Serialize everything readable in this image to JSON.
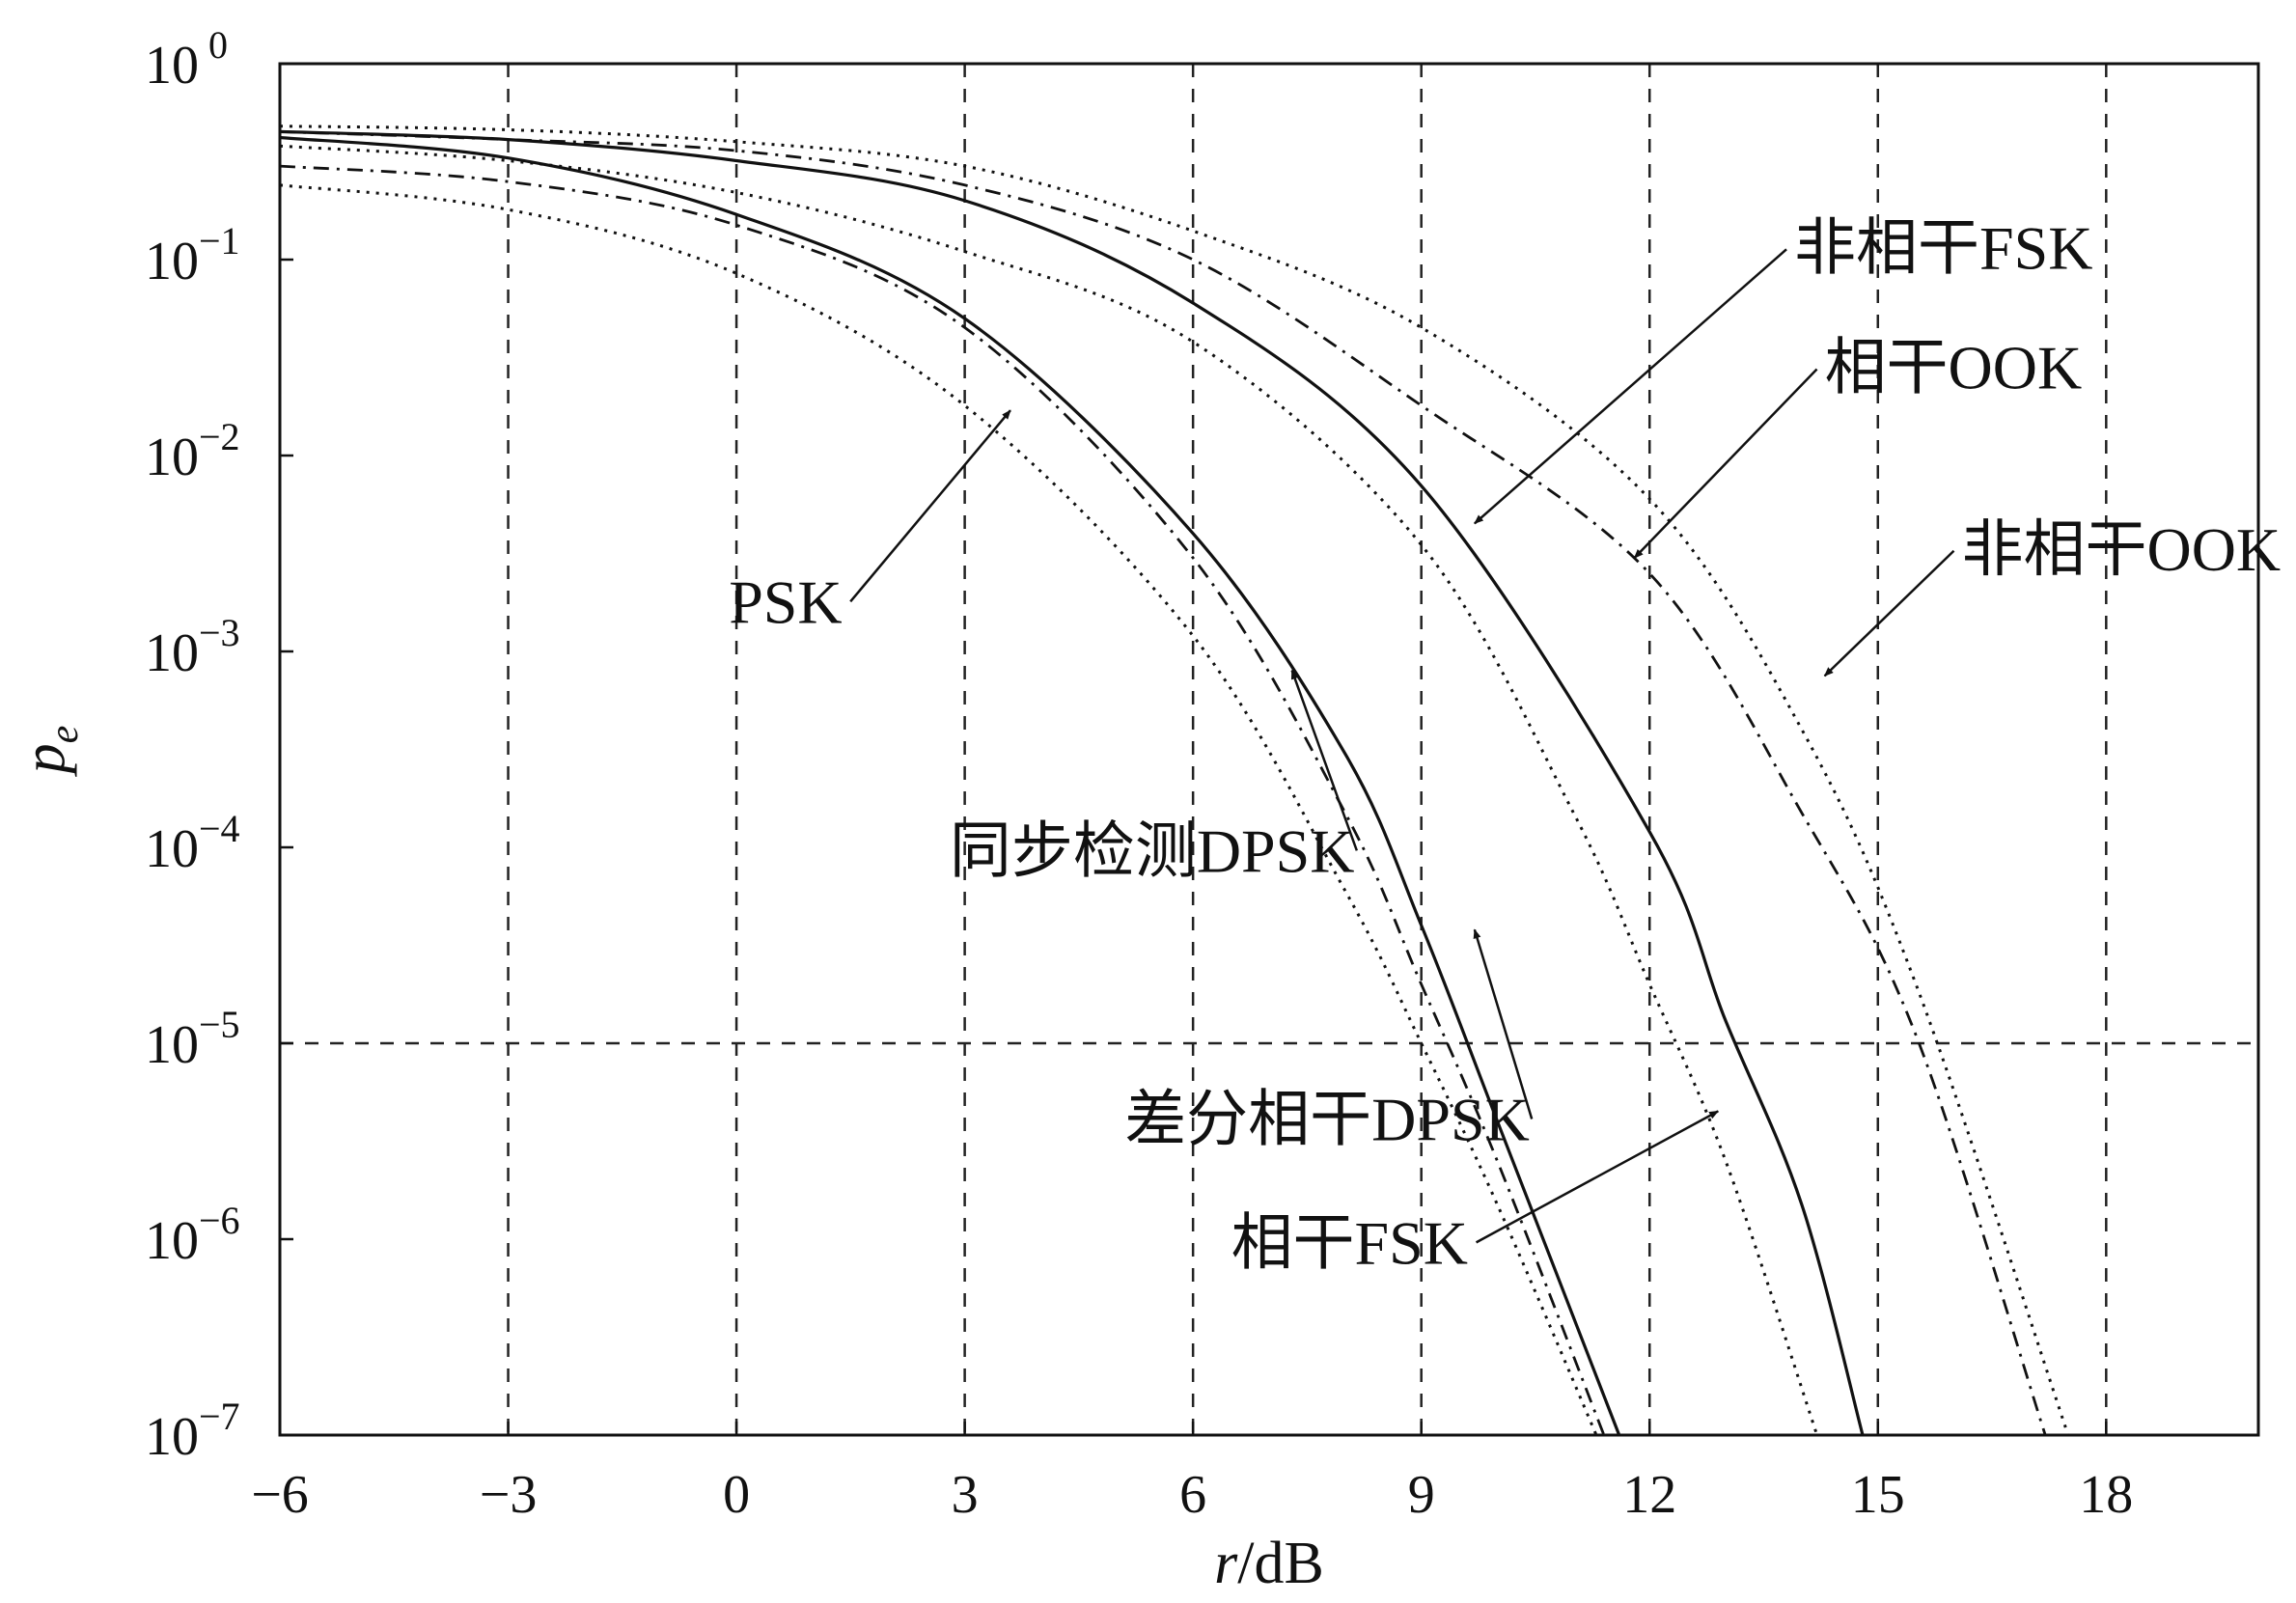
{
  "chart_data": {
    "type": "line",
    "xlabel": "r/dB",
    "ylabel": "p",
    "ylabel_sub": "e",
    "xlim": [
      -6,
      20
    ],
    "ylim": [
      1e-07,
      1
    ],
    "y_scale": "log",
    "grid": "dashed",
    "x_ticks": [
      -6,
      -3,
      0,
      3,
      6,
      9,
      12,
      15,
      18
    ],
    "x_tick_labels": [
      "−6",
      "−3",
      "0",
      "3",
      "6",
      "9",
      "12",
      "15",
      "18"
    ],
    "y_ticks": [
      {
        "value": 1,
        "base": "10",
        "exp": " 0"
      },
      {
        "value": 0.1,
        "base": "10",
        "exp": "−1"
      },
      {
        "value": 0.01,
        "base": "10",
        "exp": "−2"
      },
      {
        "value": 0.001,
        "base": "10",
        "exp": "−3"
      },
      {
        "value": 0.0001,
        "base": "10",
        "exp": "−4"
      },
      {
        "value": 1e-05,
        "base": "10",
        "exp": "−5"
      },
      {
        "value": 1e-06,
        "base": "10",
        "exp": "−6"
      },
      {
        "value": 1e-07,
        "base": "10",
        "exp": "−7"
      }
    ],
    "series": [
      {
        "name": "PSK",
        "style": "dotted",
        "x": [
          -6,
          -3,
          0,
          3,
          6,
          8,
          9,
          10,
          11.3
        ],
        "y": [
          0.24,
          0.18,
          0.085,
          0.018,
          0.0012,
          6e-05,
          1e-05,
          1.5e-06,
          1e-07
        ]
      },
      {
        "name": "同步检测DPSK",
        "style": "dashdot",
        "x": [
          -6,
          -3,
          0,
          3,
          6,
          8,
          9,
          10,
          11.4
        ],
        "y": [
          0.3,
          0.25,
          0.15,
          0.045,
          0.003,
          0.00015,
          2e-05,
          2.5e-06,
          1e-07
        ]
      },
      {
        "name": "差分相干DPSK",
        "style": "solid",
        "x": [
          -6,
          -3,
          0,
          3,
          6,
          8,
          9,
          10,
          11.6
        ],
        "y": [
          0.42,
          0.33,
          0.17,
          0.05,
          0.004,
          0.0003,
          4e-05,
          4e-06,
          1e-07
        ]
      },
      {
        "name": "相干FSK",
        "style": "dotted",
        "x": [
          -6,
          -3,
          0,
          3,
          6,
          9,
          11,
          12,
          13,
          14.2
        ],
        "y": [
          0.38,
          0.32,
          0.22,
          0.11,
          0.038,
          0.0035,
          0.00015,
          2e-05,
          2.5e-06,
          1e-07
        ]
      },
      {
        "name": "非相干FSK",
        "style": "solid",
        "x": [
          -6,
          -3,
          0,
          3,
          6,
          9,
          12,
          13,
          14,
          14.8
        ],
        "y": [
          0.45,
          0.41,
          0.32,
          0.2,
          0.06,
          0.007,
          0.00012,
          1.3e-05,
          1.5e-06,
          1e-07
        ]
      },
      {
        "name": "相干OOK",
        "style": "dashdot",
        "x": [
          -6,
          -3,
          0,
          3,
          6,
          9,
          12,
          14,
          15.5,
          17.2
        ],
        "y": [
          0.45,
          0.41,
          0.36,
          0.24,
          0.1,
          0.018,
          0.0025,
          0.00015,
          1.1e-05,
          1e-07
        ]
      },
      {
        "name": "非相干OOK",
        "style": "dotted",
        "x": [
          -6,
          -3,
          0,
          3,
          6,
          9,
          12,
          14,
          15.5,
          17.5
        ],
        "y": [
          0.48,
          0.46,
          0.4,
          0.3,
          0.14,
          0.045,
          0.006,
          0.0004,
          2e-05,
          1e-07
        ]
      }
    ],
    "annotations": [
      {
        "text": "PSK",
        "label_x": -0.1,
        "label_y": 0.0014,
        "arrow_to_x": 3.6,
        "arrow_to_y": 0.017
      },
      {
        "text": "同步检测DPSK",
        "label_x": 2.8,
        "label_y": 7.5e-05,
        "arrow_to_x": 7.3,
        "arrow_to_y": 0.0008
      },
      {
        "text": "差分相干DPSK",
        "label_x": 5.1,
        "label_y": 3.2e-06,
        "arrow_to_x": 9.7,
        "arrow_to_y": 3.8e-05
      },
      {
        "text": "相干FSK",
        "label_x": 6.5,
        "label_y": 7.5e-07,
        "arrow_to_x": 12.9,
        "arrow_to_y": 4.5e-06
      },
      {
        "text": "非相干FSK",
        "label_x": 13.9,
        "label_y": 0.09,
        "arrow_to_x": 9.7,
        "arrow_to_y": 0.0045
      },
      {
        "text": "相干OOK",
        "label_x": 14.3,
        "label_y": 0.022,
        "arrow_to_x": 11.8,
        "arrow_to_y": 0.003
      },
      {
        "text": "非相干OOK",
        "label_x": 16.1,
        "label_y": 0.0026,
        "arrow_to_x": 14.3,
        "arrow_to_y": 0.00075
      }
    ]
  }
}
